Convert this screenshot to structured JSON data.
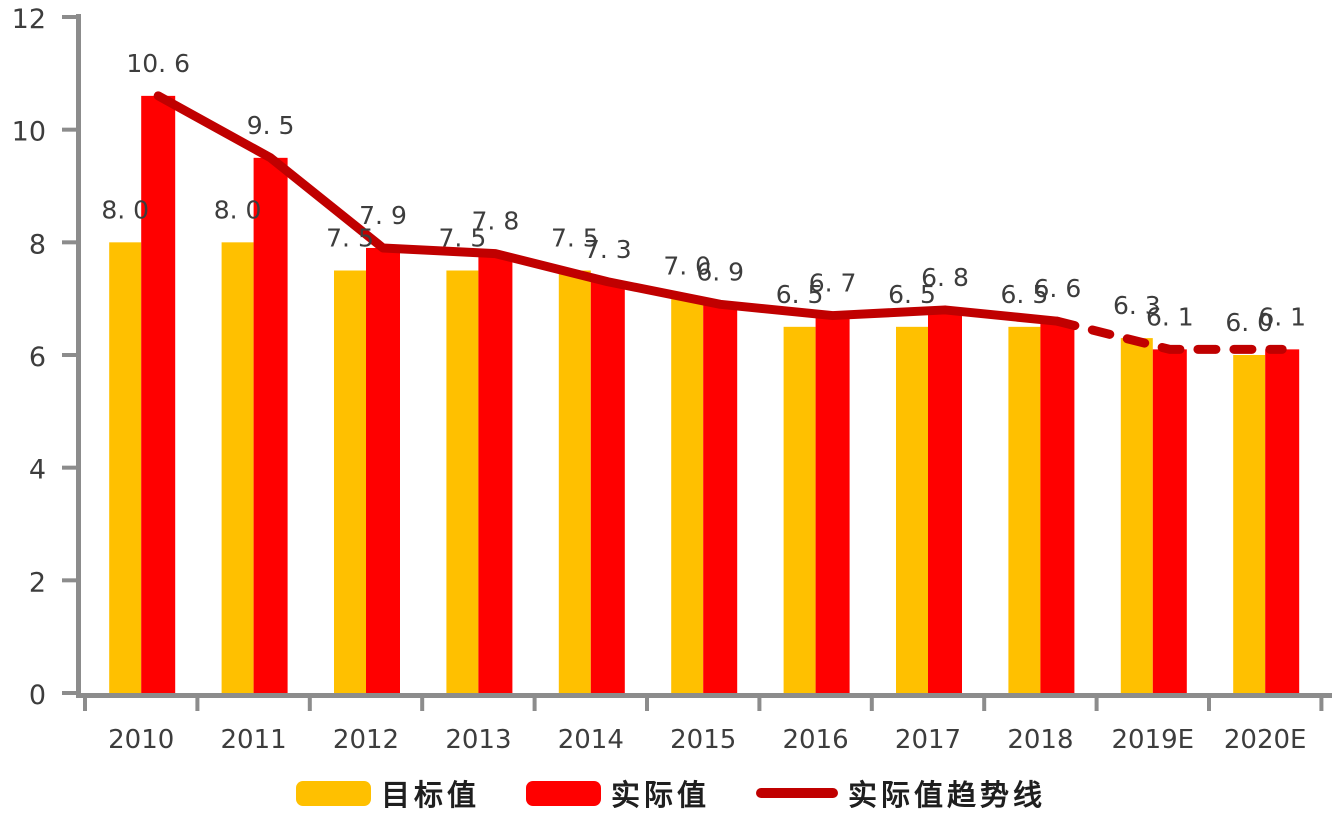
{
  "chart_data": {
    "type": "bar",
    "title": "",
    "categories": [
      "2010",
      "2011",
      "2012",
      "2013",
      "2014",
      "2015",
      "2016",
      "2017",
      "2018",
      "2019E",
      "2020E"
    ],
    "y_axis": {
      "min": 0,
      "max": 12,
      "step": 2,
      "tick_labels": [
        "0",
        "2",
        "4",
        "6",
        "8",
        "10",
        "12"
      ]
    },
    "series": [
      {
        "name": "目标值",
        "kind": "bar",
        "color": "#FFC000",
        "values": [
          8.0,
          8.0,
          7.5,
          7.5,
          7.5,
          7.0,
          6.5,
          6.5,
          6.5,
          6.3,
          6.0
        ],
        "point_labels": [
          "8. 0",
          "8. 0",
          "7. 5",
          "7. 5",
          "7. 5",
          "7. 0",
          "6. 5",
          "6. 5",
          "6. 5",
          "6. 3",
          "6. 0"
        ]
      },
      {
        "name": "实际值",
        "kind": "bar",
        "color": "#FF0000",
        "values": [
          10.6,
          9.5,
          7.9,
          7.8,
          7.3,
          6.9,
          6.7,
          6.8,
          6.6,
          6.1,
          6.1
        ],
        "point_labels": [
          "10. 6",
          "9. 5",
          "7. 9",
          "7. 8",
          "7. 3",
          "6. 9",
          "6. 7",
          "6. 8",
          "6. 6",
          "6. 1",
          "6. 1"
        ]
      },
      {
        "name": "实际值趋势线",
        "kind": "line",
        "color": "#C00000",
        "values": [
          10.6,
          9.5,
          7.9,
          7.8,
          7.3,
          6.9,
          6.7,
          6.8,
          6.6,
          6.1,
          6.1
        ],
        "dashed_from_category": "2018"
      }
    ],
    "legend": {
      "position": "bottom",
      "entries": [
        "目标值",
        "实际值",
        "实际值趋势线"
      ]
    },
    "grid": false,
    "axis_color": "#8C8C8C",
    "label_color": "#3D3D3D"
  }
}
